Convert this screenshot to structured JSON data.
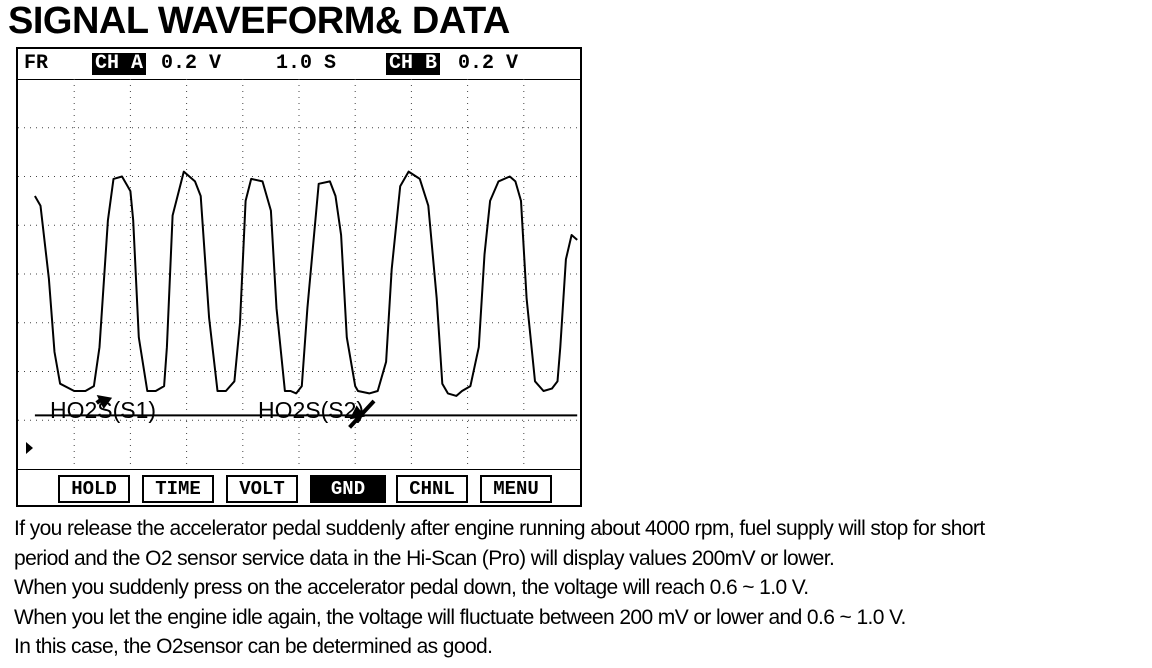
{
  "page": {
    "title": "SIGNAL WAVEFORM& DATA"
  },
  "scope": {
    "header": {
      "mode": "FR",
      "ch_a_label": "CH A",
      "ch_a_scale": "0.2 V",
      "time_scale": "1.0 S",
      "ch_b_label": "CH B",
      "ch_b_scale": "0.2 V"
    },
    "softkeys": [
      {
        "label": "HOLD",
        "active": false
      },
      {
        "label": "TIME",
        "active": false
      },
      {
        "label": "VOLT",
        "active": false
      },
      {
        "label": "GND",
        "active": true
      },
      {
        "label": "CHNL",
        "active": false
      },
      {
        "label": "MENU",
        "active": false
      }
    ]
  },
  "chart_data": {
    "type": "line",
    "title": "",
    "xlabel": "",
    "ylabel": "",
    "x_unit": "s",
    "y_unit": "V",
    "x_per_division": 1.0,
    "y_per_division": 0.2,
    "grid": true,
    "grid_style": "dotted",
    "xlim": [
      0,
      10
    ],
    "ylim": [
      -0.2,
      1.4
    ],
    "series": [
      {
        "name": "HO2S(S1)",
        "color": "#000000",
        "x": [
          0.3,
          0.4,
          0.55,
          0.65,
          0.75,
          1.0,
          1.2,
          1.35,
          1.45,
          1.6,
          1.7,
          1.85,
          2.0,
          2.05,
          2.15,
          2.3,
          2.45,
          2.6,
          2.65,
          2.75,
          2.95,
          3.15,
          3.25,
          3.4,
          3.55,
          3.6,
          3.7,
          3.85,
          3.95,
          4.05,
          4.15,
          4.35,
          4.5,
          4.6,
          4.75,
          4.85,
          4.95,
          5.05,
          5.15,
          5.35,
          5.55,
          5.65,
          5.75,
          5.85,
          6.0,
          6.05,
          6.25,
          6.4,
          6.55,
          6.65,
          6.8,
          6.95,
          7.15,
          7.3,
          7.45,
          7.55,
          7.65,
          7.8,
          7.9,
          8.05,
          8.2,
          8.3,
          8.4,
          8.55,
          8.75,
          8.85,
          8.95,
          9.05,
          9.2,
          9.35,
          9.5,
          9.6,
          9.65,
          9.75,
          9.85,
          9.95
        ],
        "y": [
          0.92,
          0.88,
          0.58,
          0.28,
          0.15,
          0.12,
          0.12,
          0.14,
          0.3,
          0.82,
          0.99,
          1.0,
          0.94,
          0.82,
          0.34,
          0.12,
          0.12,
          0.14,
          0.3,
          0.84,
          1.02,
          0.98,
          0.92,
          0.42,
          0.12,
          0.12,
          0.12,
          0.16,
          0.4,
          0.9,
          0.99,
          0.98,
          0.86,
          0.46,
          0.12,
          0.12,
          0.11,
          0.14,
          0.46,
          0.97,
          0.98,
          0.92,
          0.76,
          0.34,
          0.14,
          0.12,
          0.11,
          0.12,
          0.24,
          0.62,
          0.96,
          1.02,
          0.99,
          0.88,
          0.5,
          0.15,
          0.11,
          0.1,
          0.12,
          0.14,
          0.3,
          0.68,
          0.9,
          0.98,
          1.0,
          0.98,
          0.9,
          0.5,
          0.16,
          0.12,
          0.13,
          0.16,
          0.3,
          0.66,
          0.76,
          0.74
        ]
      },
      {
        "name": "HO2S(S2)",
        "color": "#000000",
        "x": [
          0.3,
          1.0,
          2.0,
          3.0,
          4.0,
          5.0,
          6.0,
          7.0,
          8.0,
          9.0,
          9.95
        ],
        "y": [
          0.02,
          0.02,
          0.02,
          0.02,
          0.02,
          0.02,
          0.02,
          0.02,
          0.02,
          0.02,
          0.02
        ]
      }
    ],
    "annotations": [
      {
        "text": "HO2S(S1)",
        "target_series": "HO2S(S1)",
        "arrow_tip": {
          "x": 1.4,
          "y": 0.12
        }
      },
      {
        "text": "HO2S(S2)",
        "target_series": "HO2S(S2)",
        "arrow_tip": {
          "x": 5.9,
          "y": 0.02
        }
      }
    ]
  },
  "description": {
    "lines": [
      "If you release the accelerator pedal suddenly after engine running about 4000 rpm, fuel supply will stop for short",
      "period and the O2 sensor service data in the Hi-Scan (Pro) will display values 200mV or lower.",
      "When you suddenly press on the accelerator pedal down, the voltage will reach 0.6 ~ 1.0 V.",
      "When you let the engine idle again, the voltage will fluctuate between 200 mV or lower and 0.6 ~ 1.0 V.",
      "In this case, the O2sensor can be determined as good."
    ]
  }
}
